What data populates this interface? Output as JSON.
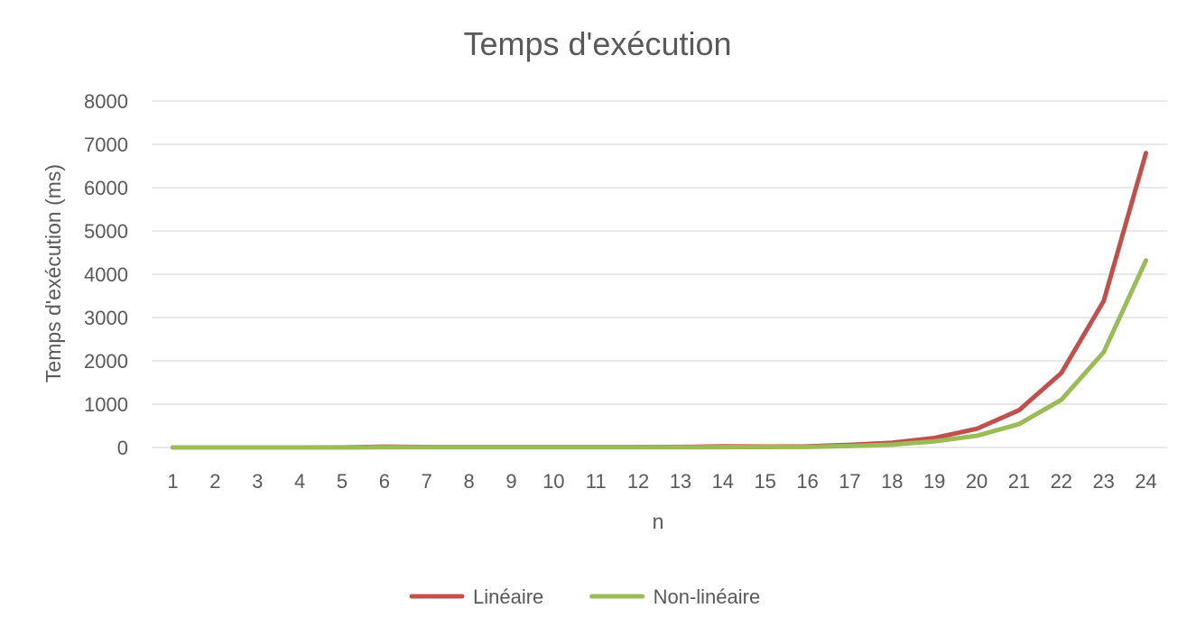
{
  "chart_data": {
    "type": "line",
    "title": "Temps d'exécution",
    "xlabel": "n",
    "ylabel": "Temps d'exécution (ms)",
    "ylim": [
      0,
      8000
    ],
    "yticks": [
      "0",
      "1000",
      "2000",
      "3000",
      "4000",
      "5000",
      "6000",
      "7000",
      "8000"
    ],
    "categories": [
      "1",
      "2",
      "3",
      "4",
      "5",
      "6",
      "7",
      "8",
      "9",
      "10",
      "11",
      "12",
      "13",
      "14",
      "15",
      "16",
      "17",
      "18",
      "19",
      "20",
      "21",
      "22",
      "23",
      "24"
    ],
    "grid": true,
    "legend_position": "bottom",
    "series": [
      {
        "name": "Linéaire",
        "color": "#c0504d",
        "values": [
          0,
          0,
          0,
          0,
          2,
          18,
          10,
          10,
          10,
          10,
          10,
          10,
          12,
          25,
          20,
          25,
          60,
          110,
          220,
          430,
          860,
          1720,
          3380,
          6800
        ]
      },
      {
        "name": "Non-linéaire",
        "color": "#9bbb59",
        "values": [
          0,
          0,
          0,
          0,
          1,
          5,
          5,
          5,
          5,
          5,
          5,
          5,
          5,
          8,
          10,
          12,
          35,
          65,
          140,
          270,
          540,
          1100,
          2200,
          4320
        ]
      }
    ]
  }
}
